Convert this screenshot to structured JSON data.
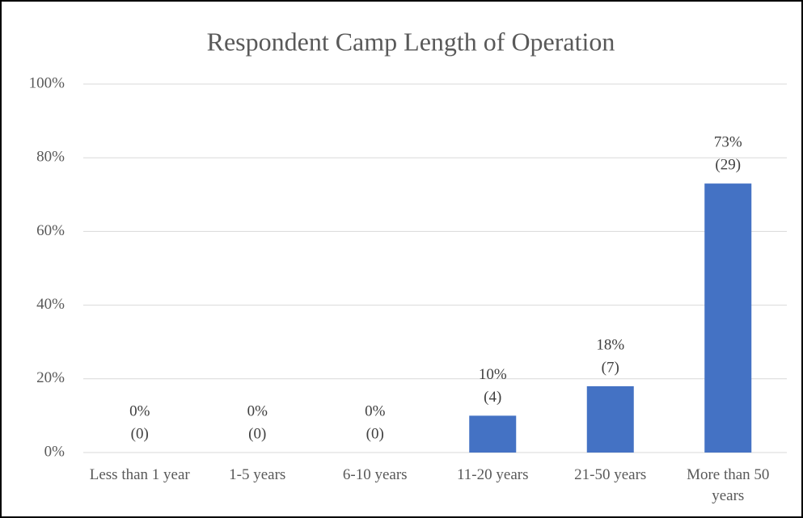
{
  "chart_data": {
    "type": "bar",
    "title": "Respondent Camp Length of Operation",
    "categories": [
      "Less than 1 year",
      "1-5 years",
      "6-10 years",
      "11-20 years",
      "21-50 years",
      "More than 50 years"
    ],
    "values": [
      0,
      0,
      0,
      10,
      18,
      73
    ],
    "value_labels": [
      "0%",
      "0%",
      "0%",
      "10%",
      "18%",
      "73%"
    ],
    "counts": [
      0,
      0,
      0,
      4,
      7,
      29
    ],
    "count_labels": [
      "(0)",
      "(0)",
      "(0)",
      "(4)",
      "(7)",
      "(29)"
    ],
    "color": "#4472c4",
    "ylim": [
      0,
      100
    ],
    "yticks": [
      {
        "value": 0,
        "label": "0%"
      },
      {
        "value": 20,
        "label": "20%"
      },
      {
        "value": 40,
        "label": "40%"
      },
      {
        "value": 60,
        "label": "60%"
      },
      {
        "value": 80,
        "label": "80%"
      },
      {
        "value": 100,
        "label": "100%"
      }
    ],
    "grid": true
  }
}
